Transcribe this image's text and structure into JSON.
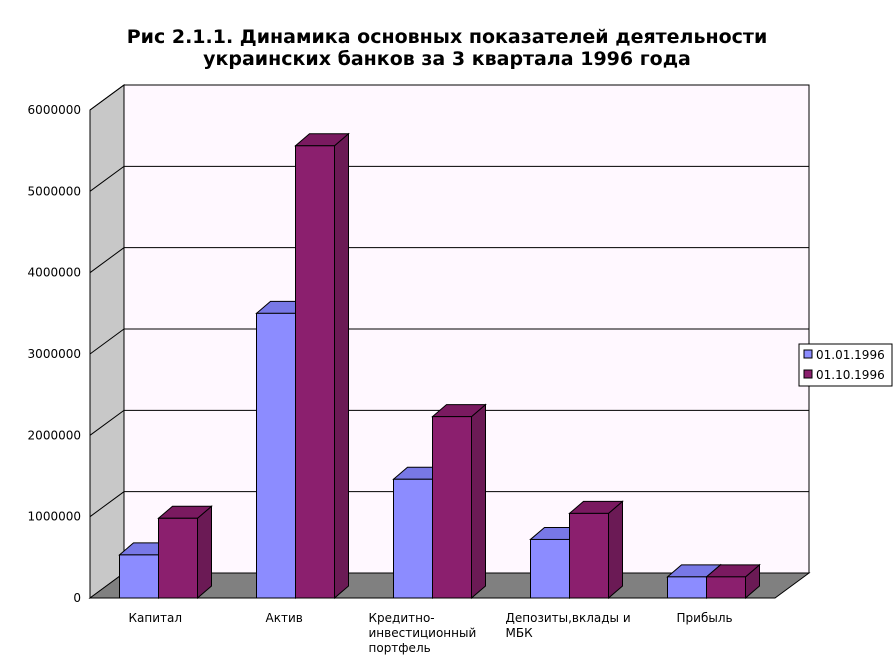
{
  "chart_data": {
    "type": "bar",
    "three_d": true,
    "title": "Рис 2.1.1. Динамика основных показателей деятельности украинских банков за 3 квартала 1996 года",
    "title_lines": [
      "Рис 2.1.1. Динамика основных показателей деятельности",
      "украинских банков за 3 квартала 1996 года"
    ],
    "categories": [
      "Капитал",
      "Актив",
      "Кредитно-инвестиционный портфель",
      "Депозиты,вклады и МБК",
      "Прибыль"
    ],
    "category_label_lines": [
      [
        "Капитал"
      ],
      [
        "Актив"
      ],
      [
        "Кредитно-",
        "инвестиционный",
        "портфель"
      ],
      [
        "Депозиты,вклады и",
        "МБК"
      ],
      [
        "Прибыль"
      ]
    ],
    "series": [
      {
        "name": "01.01.1996",
        "values": [
          530000,
          3500000,
          1460000,
          720000,
          260000
        ]
      },
      {
        "name": "01.10.1996",
        "values": [
          980000,
          5560000,
          2230000,
          1040000,
          260000
        ]
      }
    ],
    "yticks": [
      0,
      1000000,
      2000000,
      3000000,
      4000000,
      5000000,
      6000000
    ],
    "ylim": [
      0,
      6000000
    ],
    "xlabel": "",
    "ylabel": "",
    "grid": true,
    "legend_position": "right",
    "colors": {
      "series": [
        "#8c8cff",
        "#8b1f6e"
      ],
      "series_top": [
        "#7878e6",
        "#7a1a60"
      ],
      "series_side": [
        "#6666cc",
        "#6b1a55"
      ],
      "back_wall": "#fff8ff",
      "side_wall": "#c8c8c8",
      "floor": "#808080",
      "gridline": "#000000"
    }
  }
}
